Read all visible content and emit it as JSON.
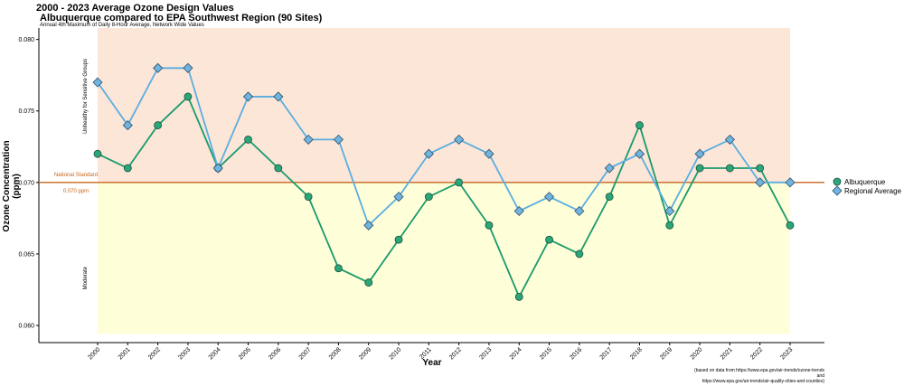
{
  "chart_data": {
    "type": "line",
    "title": "2000 - 2023 Average Ozone Design Values",
    "subtitle": "Albuquerque compared to EPA Southwest Region (90 Sites)",
    "caption": "Annual 4th Maximum of Daily 8-Hour Average, Network Wide Values",
    "xlabel": "Year",
    "ylabel": "Ozone Concentration (ppm)",
    "ylim": [
      0.0588,
      0.0808
    ],
    "categories": [
      "2000",
      "2001",
      "2002",
      "2003",
      "2004",
      "2005",
      "2006",
      "2007",
      "2008",
      "2009",
      "2010",
      "2011",
      "2012",
      "2013",
      "2014",
      "2015",
      "2016",
      "2017",
      "2018",
      "2019",
      "2020",
      "2021",
      "2022",
      "2023"
    ],
    "y_ticks": [
      "0.060",
      "0.065",
      "0.070",
      "0.075",
      "0.080"
    ],
    "y_tick_values": [
      0.06,
      0.065,
      0.07,
      0.075,
      0.08
    ],
    "series": [
      {
        "name": "Albuquerque",
        "marker": "circle",
        "color": "#1a9a6c",
        "fill": "#2aa779",
        "values": [
          0.072,
          0.071,
          0.074,
          0.076,
          0.071,
          0.073,
          0.071,
          0.069,
          0.064,
          0.063,
          0.066,
          0.069,
          0.07,
          0.067,
          0.062,
          0.066,
          0.065,
          0.069,
          0.074,
          0.067,
          0.071,
          0.071,
          0.071,
          0.067
        ]
      },
      {
        "name": "Regional Average",
        "marker": "diamond",
        "color": "#5aaee0",
        "fill": "#70b4e0",
        "values": [
          0.077,
          0.074,
          0.078,
          0.078,
          0.071,
          0.076,
          0.076,
          0.073,
          0.073,
          0.067,
          0.069,
          0.072,
          0.073,
          0.072,
          0.068,
          0.069,
          0.068,
          0.071,
          0.072,
          0.068,
          0.072,
          0.073,
          0.07,
          0.07
        ]
      }
    ],
    "reference_line": {
      "value": 0.07,
      "label": "National Standard",
      "value_label": "0.070 ppm",
      "color": "#c8641e"
    },
    "bands": [
      {
        "label": "Unhealthy for Sensitive Groups",
        "from": 0.07,
        "to": 0.0808,
        "color": "#fce6d8"
      },
      {
        "label": "Moderate",
        "from": 0.0594,
        "to": 0.07,
        "color": "#fefed8"
      }
    ],
    "legend_position": "right",
    "grid": false
  },
  "source_note": {
    "line1": "(based on data from https://www.epa.gov/air-trends/ozone-trends",
    "line2": "and",
    "line3": "https://www.epa.gov/air-trends/air-quality-cities-and-counties)"
  }
}
